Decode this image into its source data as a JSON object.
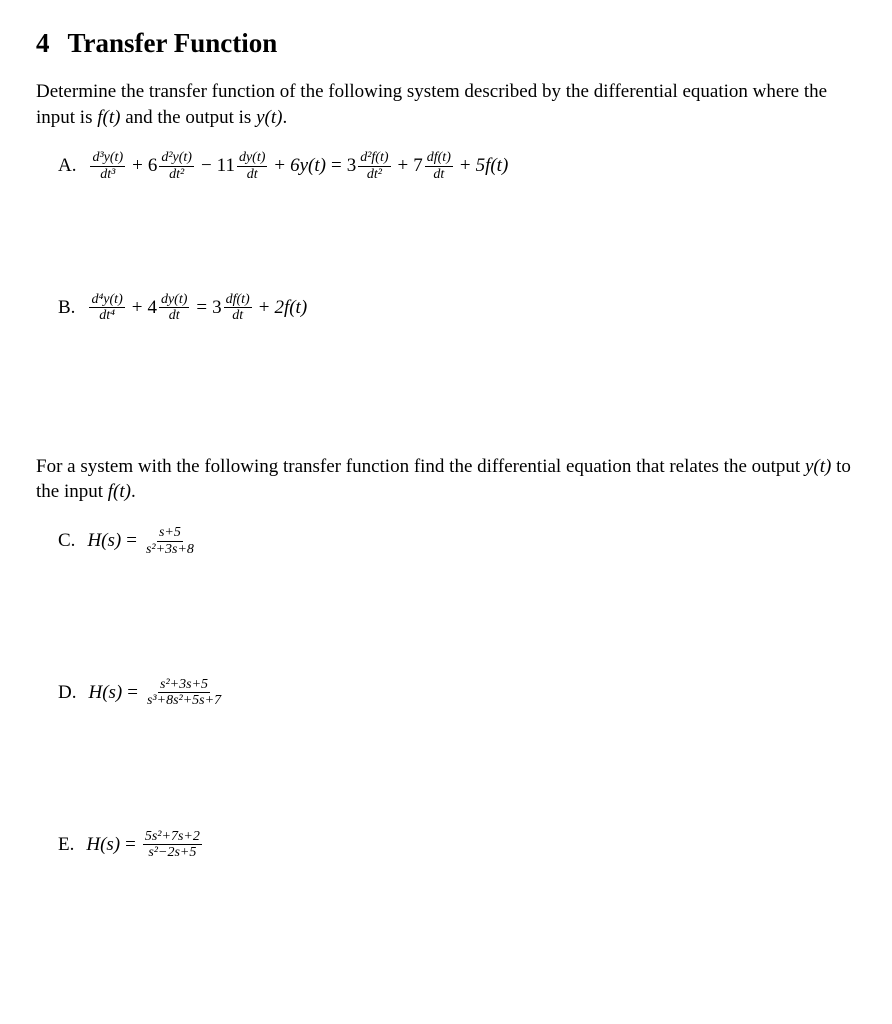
{
  "section": {
    "number": "4",
    "title": "Transfer Function"
  },
  "intro1_part1": "Determine the transfer function of the following system described by the differential equation where the input is ",
  "intro1_ft": "f(t)",
  "intro1_mid": " and the output is ",
  "intro1_yt": "y(t)",
  "intro1_end": ".",
  "intro2_part1": "For a system with the following transfer function find the differential equation that relates the output ",
  "intro2_yt": "y(t)",
  "intro2_mid": " to the input ",
  "intro2_ft": "f(t)",
  "intro2_end": ".",
  "problems": {
    "A": {
      "label": "A.",
      "lhs_term1_num": "d³y(t)",
      "lhs_term1_den": "dt³",
      "lhs_term2_coef": "6",
      "lhs_term2_num": "d²y(t)",
      "lhs_term2_den": "dt²",
      "lhs_term3_coef": "11",
      "lhs_term3_num": "dy(t)",
      "lhs_term3_den": "dt",
      "lhs_term4": "6y(t)",
      "rhs_term1_coef": "3",
      "rhs_term1_num": "d²f(t)",
      "rhs_term1_den": "dt²",
      "rhs_term2_coef": "7",
      "rhs_term2_num": "df(t)",
      "rhs_term2_den": "dt",
      "rhs_term3": "5f(t)"
    },
    "B": {
      "label": "B.",
      "lhs_term1_num": "d⁴y(t)",
      "lhs_term1_den": "dt⁴",
      "lhs_term2_coef": "4",
      "lhs_term2_num": "dy(t)",
      "lhs_term2_den": "dt",
      "rhs_term1_coef": "3",
      "rhs_term1_num": "df(t)",
      "rhs_term1_den": "dt",
      "rhs_term2": "2f(t)"
    },
    "C": {
      "label": "C.",
      "func": "H(s)",
      "eq": "=",
      "num": "s+5",
      "den": "s²+3s+8"
    },
    "D": {
      "label": "D.",
      "func": "H(s)",
      "eq": "=",
      "num": "s²+3s+5",
      "den": "s³+8s²+5s+7"
    },
    "E": {
      "label": "E.",
      "func": "H(s)",
      "eq": "=",
      "num": "5s²+7s+2",
      "den": "s²−2s+5"
    }
  },
  "ops": {
    "plus": "+",
    "minus": "−",
    "eq": "="
  }
}
